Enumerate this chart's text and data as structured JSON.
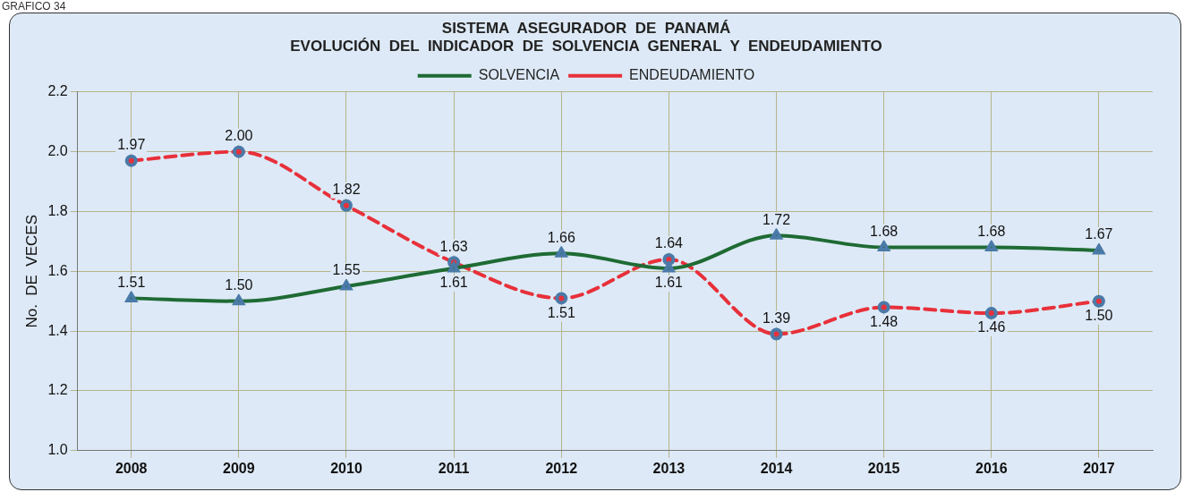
{
  "chart_data": {
    "type": "line",
    "title": "SISTEMA  ASEGURADOR  DE  PANAMÁ",
    "subtitle": "EVOLUCIÓN  DEL  INDICADOR  DE  SOLVENCIA  GENERAL  Y  ENDEUDAMIENTO",
    "ylabel": "No.  DE  VECES",
    "annotations": [
      "GRAFICO 34"
    ],
    "categories": [
      "2008",
      "2009",
      "2010",
      "2011",
      "2012",
      "2013",
      "2014",
      "2015",
      "2016",
      "2017"
    ],
    "series": [
      {
        "name": "SOLVENCIA",
        "color": "#1e6b34",
        "marker": "triangle",
        "line_style": "solid",
        "values": [
          1.51,
          1.5,
          1.55,
          1.61,
          1.66,
          1.61,
          1.72,
          1.68,
          1.68,
          1.67
        ],
        "value_labels": [
          "1.51",
          "1.50",
          "1.55",
          "1.61",
          "1.66",
          "1.61",
          "1.72",
          "1.68",
          "1.68",
          "1.67"
        ]
      },
      {
        "name": "ENDEUDAMIENTO",
        "color": "#e8303a",
        "marker": "circle",
        "line_style": "dashed",
        "values": [
          1.97,
          2.0,
          1.82,
          1.63,
          1.51,
          1.64,
          1.39,
          1.48,
          1.46,
          1.5
        ],
        "value_labels": [
          "1.97",
          "2.00",
          "1.82",
          "1.63",
          "1.51",
          "1.64",
          "1.39",
          "1.48",
          "1.46",
          "1.50"
        ]
      }
    ],
    "ylim": [
      1.0,
      2.2
    ],
    "yticks": [
      {
        "value": 1.0,
        "label": "1.0"
      },
      {
        "value": 1.2,
        "label": "1.2"
      },
      {
        "value": 1.4,
        "label": "1.4"
      },
      {
        "value": 1.6,
        "label": "1.6"
      },
      {
        "value": 1.8,
        "label": "1.8"
      },
      {
        "value": 2.0,
        "label": "2.0"
      },
      {
        "value": 2.2,
        "label": "2.2"
      }
    ],
    "grid": true,
    "legend": "top"
  }
}
